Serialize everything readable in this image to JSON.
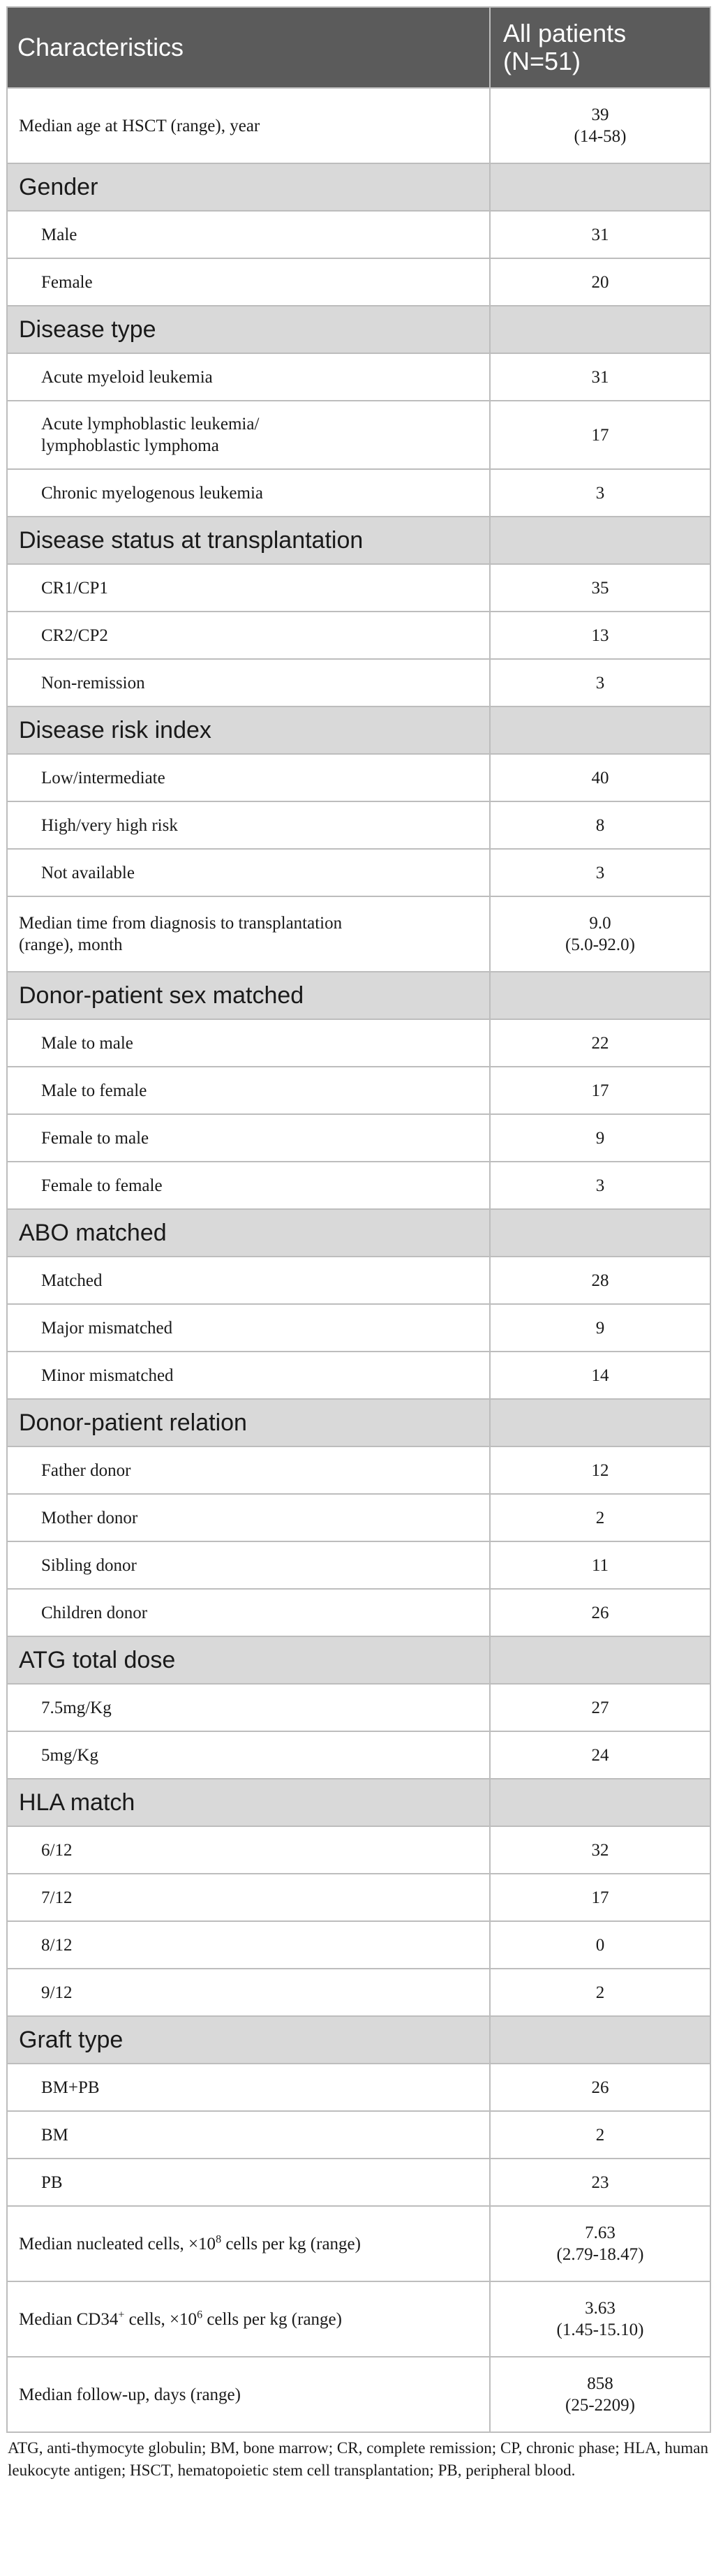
{
  "header": {
    "col1": "Characteristics",
    "col2": "All patients (N=51)"
  },
  "rows": {
    "median_age": {
      "label": "Median age at HSCT (range), year",
      "v1": "39",
      "v2": "(14-58)"
    },
    "gender": {
      "section": "Gender",
      "male": {
        "label": "Male",
        "value": "31"
      },
      "female": {
        "label": "Female",
        "value": "20"
      }
    },
    "disease_type": {
      "section": "Disease type",
      "aml": {
        "label": "Acute myeloid leukemia",
        "value": "31"
      },
      "all": {
        "label_line1": "Acute lymphoblastic leukemia/",
        "label_line2": "lymphoblastic lymphoma",
        "value": "17"
      },
      "cml": {
        "label": "Chronic myelogenous leukemia",
        "value": "3"
      }
    },
    "disease_status": {
      "section": "Disease status at transplantation",
      "cr1": {
        "label": "CR1/CP1",
        "value": "35"
      },
      "cr2": {
        "label": "CR2/CP2",
        "value": "13"
      },
      "nr": {
        "label": "Non-remission",
        "value": "3"
      }
    },
    "risk_index": {
      "section": "Disease risk index",
      "low": {
        "label": "Low/intermediate",
        "value": "40"
      },
      "high": {
        "label": "High/very high risk",
        "value": "8"
      },
      "na": {
        "label": "Not available",
        "value": "3"
      }
    },
    "median_time": {
      "label_line1": "Median time from diagnosis to transplantation",
      "label_line2": "(range), month",
      "v1": "9.0",
      "v2": "(5.0-92.0)"
    },
    "sex_matched": {
      "section": "Donor-patient sex matched",
      "mm": {
        "label": "Male to male",
        "value": "22"
      },
      "mf": {
        "label": "Male to female",
        "value": "17"
      },
      "fm": {
        "label": "Female to male",
        "value": "9"
      },
      "ff": {
        "label": "Female to female",
        "value": "3"
      }
    },
    "abo": {
      "section": "ABO matched",
      "matched": {
        "label": "Matched",
        "value": "28"
      },
      "major": {
        "label": "Major mismatched",
        "value": "9"
      },
      "minor": {
        "label": "Minor mismatched",
        "value": "14"
      }
    },
    "relation": {
      "section": "Donor-patient relation",
      "father": {
        "label": "Father donor",
        "value": "12"
      },
      "mother": {
        "label": "Mother donor",
        "value": "2"
      },
      "sibling": {
        "label": "Sibling donor",
        "value": "11"
      },
      "children": {
        "label": "Children donor",
        "value": "26"
      }
    },
    "atg": {
      "section": "ATG total dose",
      "d75": {
        "label": "7.5mg/Kg",
        "value": "27"
      },
      "d5": {
        "label": "5mg/Kg",
        "value": "24"
      }
    },
    "hla": {
      "section": "HLA match",
      "h6": {
        "label": "6/12",
        "value": "32"
      },
      "h7": {
        "label": "7/12",
        "value": "17"
      },
      "h8": {
        "label": "8/12",
        "value": "0"
      },
      "h9": {
        "label": "9/12",
        "value": "2"
      }
    },
    "graft": {
      "section": "Graft type",
      "bmpb": {
        "label": "BM+PB",
        "value": "26"
      },
      "bm": {
        "label": "BM",
        "value": "2"
      },
      "pb": {
        "label": "PB",
        "value": "23"
      }
    },
    "nucleated": {
      "label_a": "Median nucleated cells, ×10",
      "sup": "8",
      "label_b": " cells per kg (range)",
      "v1": "7.63",
      "v2": "(2.79-18.47)"
    },
    "cd34": {
      "label_a": "Median CD34",
      "sup_a": "+",
      "label_b": " cells, ×10",
      "sup_b": "6",
      "label_c": " cells per kg (range)",
      "v1": "3.63",
      "v2": "(1.45-15.10)"
    },
    "followup": {
      "label": "Median follow-up, days (range)",
      "v1": "858",
      "v2": "(25-2209)"
    }
  },
  "footnote": "ATG, anti-thymocyte globulin; BM, bone marrow; CR, complete remission; CP, chronic phase; HLA, human leukocyte antigen; HSCT, hematopoietic stem cell transplantation; PB, peripheral blood."
}
